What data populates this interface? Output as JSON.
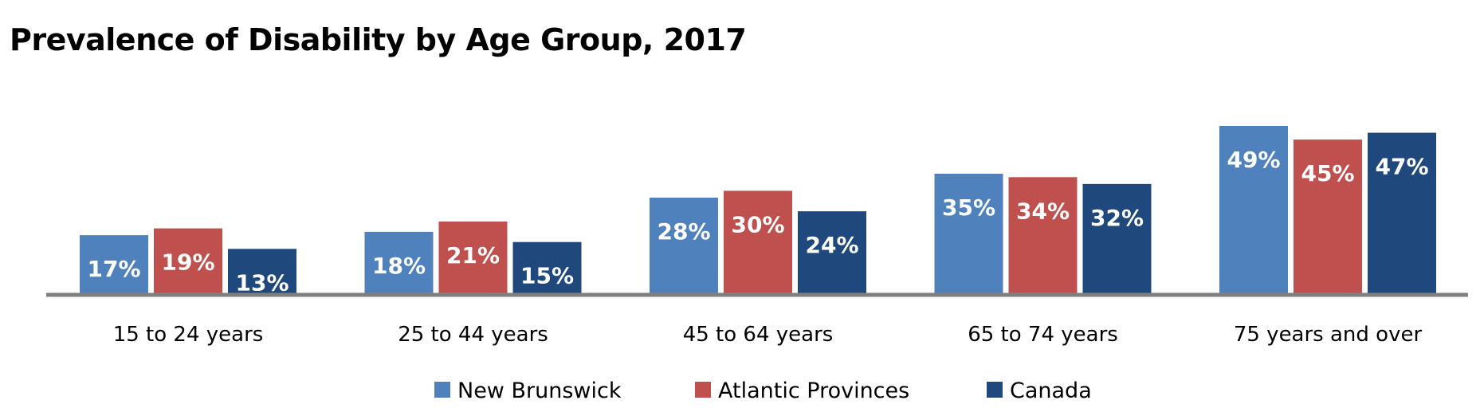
{
  "chart_data": {
    "type": "bar",
    "title": "Prevalence of Disability by Age Group, 2017",
    "categories": [
      "15 to 24 years",
      "25 to 44 years",
      "45 to 64 years",
      "65 to 74 years",
      "75 years and over"
    ],
    "series": [
      {
        "name": "New Brunswick",
        "color": "#4f81bd",
        "values": [
          17,
          18,
          28,
          35,
          49
        ],
        "labels": [
          "17%",
          "18%",
          "28%",
          "35%",
          "49%"
        ]
      },
      {
        "name": "Atlantic Provinces",
        "color": "#c0504d",
        "values": [
          19,
          21,
          30,
          34,
          45
        ],
        "labels": [
          "19%",
          "21%",
          "30%",
          "34%",
          "45%"
        ]
      },
      {
        "name": "Canada",
        "color": "#1f497d",
        "values": [
          13,
          15,
          24,
          32,
          47
        ],
        "labels": [
          "13%",
          "15%",
          "24%",
          "32%",
          "47%"
        ]
      }
    ],
    "ylim": [
      0,
      49
    ],
    "grid": false,
    "legend": "bottom",
    "axis_color": "#7f7f7f"
  }
}
